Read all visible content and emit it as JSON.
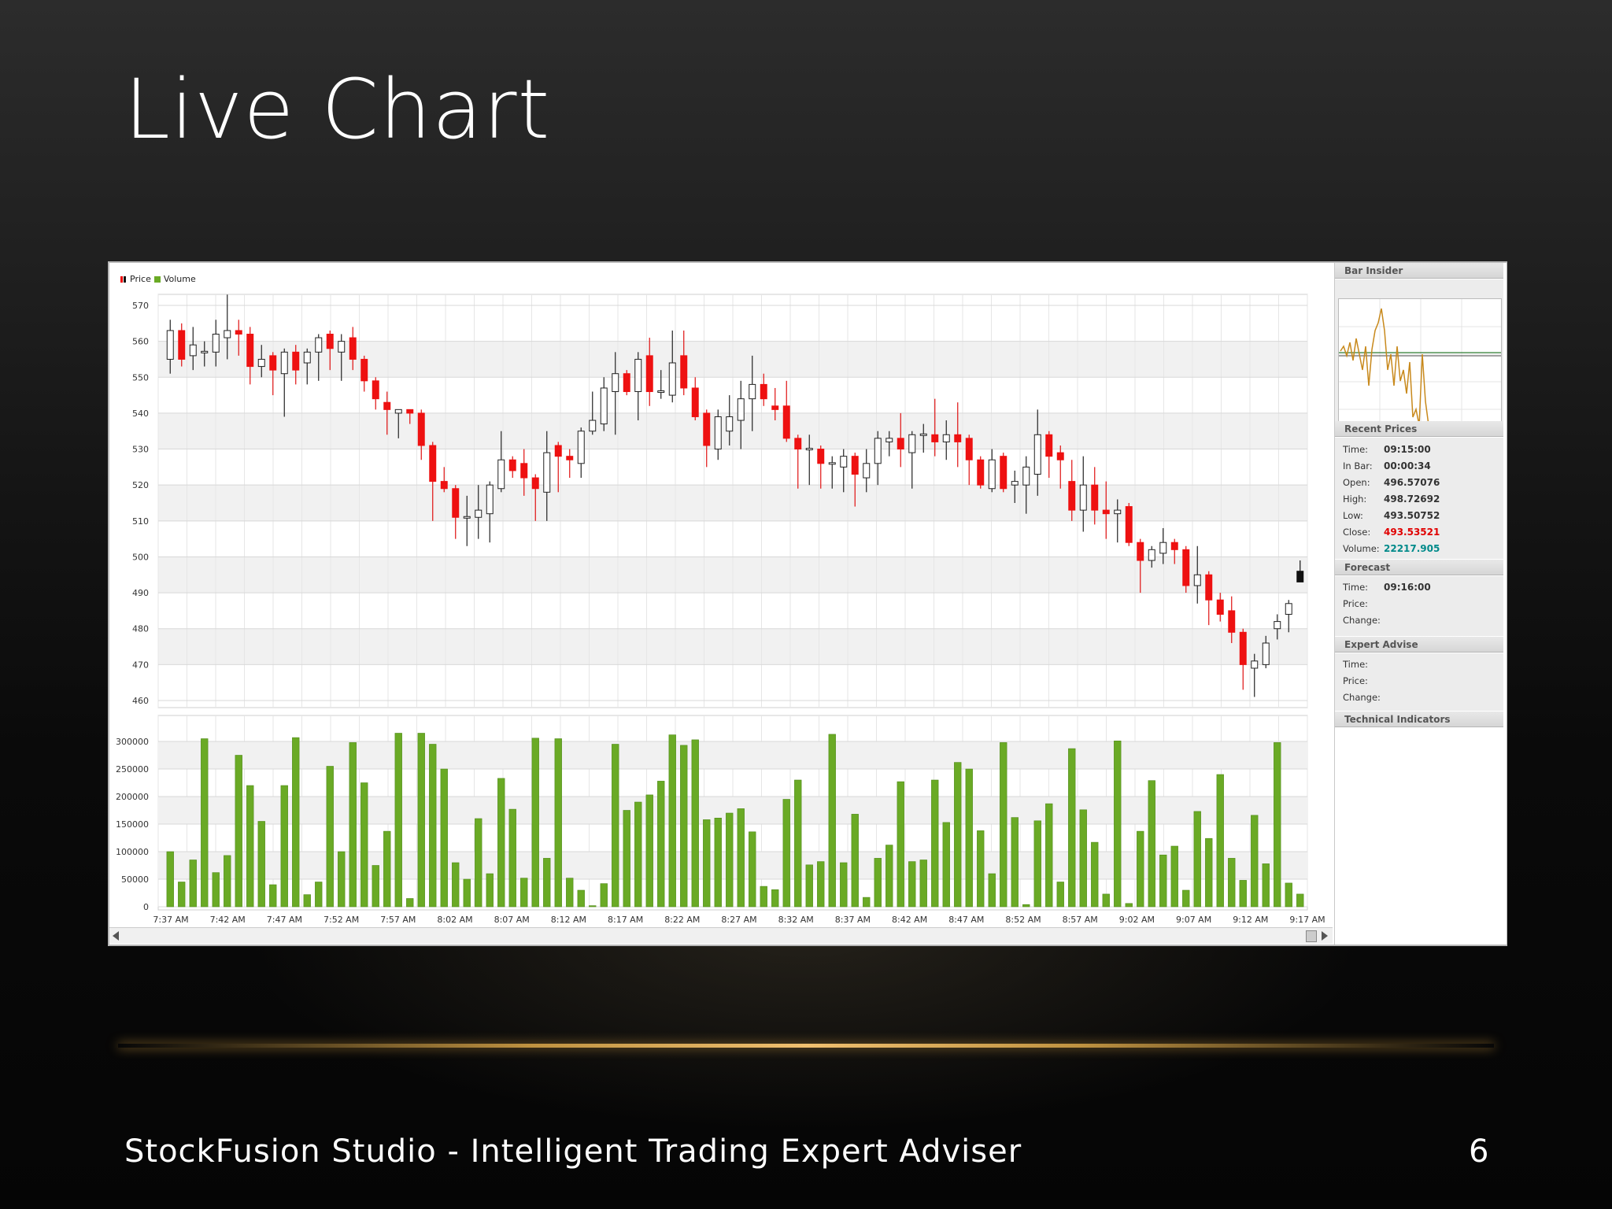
{
  "slide": {
    "title": "Live Chart",
    "footer": "StockFusion Studio - Intelligent Trading Expert Adviser",
    "page_number": "6"
  },
  "legend": {
    "price": "Price",
    "volume": "Volume"
  },
  "colors": {
    "up_candle": "#ffffff",
    "down_candle": "#ee1111",
    "volume_bar": "#6aaa25",
    "gold_line": "#f0c070",
    "forecast_last": "#111111"
  },
  "side_panel": {
    "bar_insider": {
      "title": "Bar Insider"
    },
    "recent_prices": {
      "title": "Recent Prices",
      "rows": [
        {
          "label": "Time:",
          "value": "09:15:00",
          "color": "#333333"
        },
        {
          "label": "In Bar:",
          "value": "00:00:34",
          "color": "#333333"
        },
        {
          "label": "Open:",
          "value": "496.57076",
          "color": "#333333"
        },
        {
          "label": "High:",
          "value": "498.72692",
          "color": "#333333"
        },
        {
          "label": "Low:",
          "value": "493.50752",
          "color": "#333333"
        },
        {
          "label": "Close:",
          "value": "493.53521",
          "color": "#e00000"
        },
        {
          "label": "Volume:",
          "value": "22217.905",
          "color": "#008a8a"
        }
      ]
    },
    "forecast": {
      "title": "Forecast",
      "rows": [
        {
          "label": "Time:",
          "value": "09:16:00"
        },
        {
          "label": "Price:",
          "value": ""
        },
        {
          "label": "Change:",
          "value": ""
        }
      ]
    },
    "expert_advise": {
      "title": "Expert Advise",
      "rows": [
        {
          "label": "Time:",
          "value": ""
        },
        {
          "label": "Price:",
          "value": ""
        },
        {
          "label": "Change:",
          "value": ""
        }
      ]
    },
    "technical_indicators": {
      "title": "Technical Indicators"
    }
  },
  "chart_data": [
    {
      "type": "candlestick",
      "title": "",
      "legend": [
        "Price",
        "Volume"
      ],
      "ylim": [
        460,
        570
      ],
      "y_ticks": [
        460,
        470,
        480,
        490,
        500,
        510,
        520,
        530,
        540,
        550,
        560,
        570
      ],
      "grid": true,
      "candles": [
        {
          "o": 555,
          "c": 563,
          "h": 566,
          "l": 551
        },
        {
          "o": 563,
          "c": 555,
          "h": 565,
          "l": 553
        },
        {
          "o": 556,
          "c": 559,
          "h": 564,
          "l": 552
        },
        {
          "o": 557,
          "c": 557,
          "h": 560,
          "l": 553
        },
        {
          "o": 557,
          "c": 562,
          "h": 566,
          "l": 553
        },
        {
          "o": 561,
          "c": 563,
          "h": 573,
          "l": 555
        },
        {
          "o": 563,
          "c": 562,
          "h": 566,
          "l": 556
        },
        {
          "o": 562,
          "c": 553,
          "h": 564,
          "l": 548
        },
        {
          "o": 553,
          "c": 555,
          "h": 559,
          "l": 550
        },
        {
          "o": 556,
          "c": 552,
          "h": 557,
          "l": 545
        },
        {
          "o": 551,
          "c": 557,
          "h": 558,
          "l": 539
        },
        {
          "o": 557,
          "c": 552,
          "h": 559,
          "l": 548
        },
        {
          "o": 554,
          "c": 557,
          "h": 558,
          "l": 548
        },
        {
          "o": 557,
          "c": 561,
          "h": 562,
          "l": 549
        },
        {
          "o": 562,
          "c": 558,
          "h": 563,
          "l": 552
        },
        {
          "o": 557,
          "c": 560,
          "h": 562,
          "l": 549
        },
        {
          "o": 561,
          "c": 555,
          "h": 564,
          "l": 552
        },
        {
          "o": 555,
          "c": 549,
          "h": 556,
          "l": 546
        },
        {
          "o": 549,
          "c": 544,
          "h": 550,
          "l": 541
        },
        {
          "o": 543,
          "c": 541,
          "h": 546,
          "l": 534
        },
        {
          "o": 540,
          "c": 541,
          "h": 541,
          "l": 533
        },
        {
          "o": 541,
          "c": 540,
          "h": 541,
          "l": 537
        },
        {
          "o": 540,
          "c": 531,
          "h": 541,
          "l": 527
        },
        {
          "o": 531,
          "c": 521,
          "h": 532,
          "l": 510
        },
        {
          "o": 521,
          "c": 519,
          "h": 525,
          "l": 518
        },
        {
          "o": 519,
          "c": 511,
          "h": 520,
          "l": 505
        },
        {
          "o": 511,
          "c": 511,
          "h": 517,
          "l": 503
        },
        {
          "o": 511,
          "c": 513,
          "h": 520,
          "l": 505
        },
        {
          "o": 512,
          "c": 520,
          "h": 521,
          "l": 504
        },
        {
          "o": 519,
          "c": 527,
          "h": 535,
          "l": 518
        },
        {
          "o": 527,
          "c": 524,
          "h": 528,
          "l": 522
        },
        {
          "o": 526,
          "c": 522,
          "h": 530,
          "l": 517
        },
        {
          "o": 522,
          "c": 519,
          "h": 523,
          "l": 510
        },
        {
          "o": 518,
          "c": 529,
          "h": 535,
          "l": 510
        },
        {
          "o": 531,
          "c": 528,
          "h": 532,
          "l": 518
        },
        {
          "o": 528,
          "c": 527,
          "h": 530,
          "l": 522
        },
        {
          "o": 526,
          "c": 535,
          "h": 536,
          "l": 522
        },
        {
          "o": 535,
          "c": 538,
          "h": 546,
          "l": 534
        },
        {
          "o": 537,
          "c": 547,
          "h": 550,
          "l": 535
        },
        {
          "o": 546,
          "c": 551,
          "h": 557,
          "l": 534
        },
        {
          "o": 551,
          "c": 546,
          "h": 552,
          "l": 545
        },
        {
          "o": 546,
          "c": 555,
          "h": 557,
          "l": 538
        },
        {
          "o": 556,
          "c": 546,
          "h": 561,
          "l": 542
        },
        {
          "o": 546,
          "c": 546,
          "h": 552,
          "l": 544
        },
        {
          "o": 545,
          "c": 554,
          "h": 563,
          "l": 543
        },
        {
          "o": 556,
          "c": 547,
          "h": 563,
          "l": 545
        },
        {
          "o": 547,
          "c": 539,
          "h": 550,
          "l": 538
        },
        {
          "o": 540,
          "c": 531,
          "h": 541,
          "l": 525
        },
        {
          "o": 530,
          "c": 539,
          "h": 541,
          "l": 527
        },
        {
          "o": 535,
          "c": 539,
          "h": 545,
          "l": 531
        },
        {
          "o": 538,
          "c": 544,
          "h": 549,
          "l": 530
        },
        {
          "o": 544,
          "c": 548,
          "h": 556,
          "l": 535
        },
        {
          "o": 548,
          "c": 544,
          "h": 551,
          "l": 542
        },
        {
          "o": 542,
          "c": 541,
          "h": 547,
          "l": 538
        },
        {
          "o": 542,
          "c": 533,
          "h": 549,
          "l": 532
        },
        {
          "o": 533,
          "c": 530,
          "h": 534,
          "l": 519
        },
        {
          "o": 530,
          "c": 530,
          "h": 534,
          "l": 520
        },
        {
          "o": 530,
          "c": 526,
          "h": 531,
          "l": 519
        },
        {
          "o": 526,
          "c": 526,
          "h": 528,
          "l": 519
        },
        {
          "o": 525,
          "c": 528,
          "h": 530,
          "l": 518
        },
        {
          "o": 528,
          "c": 523,
          "h": 529,
          "l": 514
        },
        {
          "o": 522,
          "c": 526,
          "h": 530,
          "l": 518
        },
        {
          "o": 526,
          "c": 533,
          "h": 535,
          "l": 520
        },
        {
          "o": 532,
          "c": 533,
          "h": 535,
          "l": 528
        },
        {
          "o": 533,
          "c": 530,
          "h": 540,
          "l": 525
        },
        {
          "o": 529,
          "c": 534,
          "h": 535,
          "l": 519
        },
        {
          "o": 534,
          "c": 534,
          "h": 537,
          "l": 529
        },
        {
          "o": 534,
          "c": 532,
          "h": 544,
          "l": 528
        },
        {
          "o": 532,
          "c": 534,
          "h": 538,
          "l": 527
        },
        {
          "o": 534,
          "c": 532,
          "h": 543,
          "l": 525
        },
        {
          "o": 533,
          "c": 527,
          "h": 534,
          "l": 520
        },
        {
          "o": 527,
          "c": 520,
          "h": 528,
          "l": 519
        },
        {
          "o": 519,
          "c": 527,
          "h": 530,
          "l": 518
        },
        {
          "o": 528,
          "c": 519,
          "h": 529,
          "l": 518
        },
        {
          "o": 520,
          "c": 521,
          "h": 524,
          "l": 515
        },
        {
          "o": 520,
          "c": 525,
          "h": 528,
          "l": 512
        },
        {
          "o": 523,
          "c": 534,
          "h": 541,
          "l": 517
        },
        {
          "o": 534,
          "c": 528,
          "h": 535,
          "l": 522
        },
        {
          "o": 529,
          "c": 527,
          "h": 531,
          "l": 519
        },
        {
          "o": 521,
          "c": 513,
          "h": 527,
          "l": 510
        },
        {
          "o": 513,
          "c": 520,
          "h": 528,
          "l": 507
        },
        {
          "o": 520,
          "c": 513,
          "h": 525,
          "l": 509
        },
        {
          "o": 513,
          "c": 512,
          "h": 521,
          "l": 505
        },
        {
          "o": 512,
          "c": 513,
          "h": 516,
          "l": 504
        },
        {
          "o": 514,
          "c": 504,
          "h": 515,
          "l": 503
        },
        {
          "o": 504,
          "c": 499,
          "h": 505,
          "l": 490
        },
        {
          "o": 499,
          "c": 502,
          "h": 503,
          "l": 497
        },
        {
          "o": 501,
          "c": 504,
          "h": 508,
          "l": 498
        },
        {
          "o": 504,
          "c": 502,
          "h": 505,
          "l": 498
        },
        {
          "o": 502,
          "c": 492,
          "h": 503,
          "l": 490
        },
        {
          "o": 492,
          "c": 495,
          "h": 503,
          "l": 487
        },
        {
          "o": 495,
          "c": 488,
          "h": 496,
          "l": 481
        },
        {
          "o": 488,
          "c": 484,
          "h": 490,
          "l": 482
        },
        {
          "o": 485,
          "c": 479,
          "h": 489,
          "l": 476
        },
        {
          "o": 479,
          "c": 470,
          "h": 480,
          "l": 463
        },
        {
          "o": 469,
          "c": 471,
          "h": 473,
          "l": 461
        },
        {
          "o": 470,
          "c": 476,
          "h": 478,
          "l": 469
        },
        {
          "o": 480,
          "c": 482,
          "h": 484,
          "l": 477
        },
        {
          "o": 484,
          "c": 487,
          "h": 488,
          "l": 479
        },
        {
          "o": 496,
          "c": 493,
          "h": 499,
          "l": 493
        }
      ]
    },
    {
      "type": "bar",
      "ylim": [
        0,
        320000
      ],
      "y_ticks": [
        0,
        50000,
        100000,
        150000,
        200000,
        250000,
        300000
      ],
      "x_labels": [
        "7:37 AM",
        "7:42 AM",
        "7:47 AM",
        "7:52 AM",
        "7:57 AM",
        "8:02 AM",
        "8:07 AM",
        "8:12 AM",
        "8:17 AM",
        "8:22 AM",
        "8:27 AM",
        "8:32 AM",
        "8:37 AM",
        "8:42 AM",
        "8:47 AM",
        "8:52 AM",
        "8:57 AM",
        "9:02 AM",
        "9:07 AM",
        "9:12 AM",
        "9:17 AM"
      ],
      "values": [
        100000,
        45000,
        85000,
        305000,
        62000,
        93000,
        275000,
        220000,
        155000,
        40000,
        220000,
        307000,
        22000,
        45000,
        255000,
        100000,
        298000,
        225000,
        75000,
        137000,
        315000,
        15000,
        315000,
        295000,
        250000,
        80000,
        50000,
        160000,
        60000,
        233000,
        177000,
        52000,
        306000,
        88000,
        305000,
        52000,
        30000,
        2000,
        42000,
        295000,
        175000,
        190000,
        203000,
        228000,
        312000,
        293000,
        303000,
        158000,
        161000,
        170000,
        178000,
        136000,
        37000,
        31000,
        195000,
        230000,
        76000,
        82000,
        313000,
        80000,
        168000,
        17000,
        88000,
        112000,
        227000,
        82000,
        85000,
        230000,
        153000,
        262000,
        250000,
        138000,
        60000,
        298000,
        162000,
        4000,
        156000,
        187000,
        45000,
        287000,
        176000,
        117000,
        23000,
        301000,
        6000,
        137000,
        229000,
        94000,
        110000,
        30000,
        173000,
        124000,
        240000,
        88000,
        48000,
        166000,
        78000,
        298000,
        43000,
        23000
      ]
    }
  ]
}
